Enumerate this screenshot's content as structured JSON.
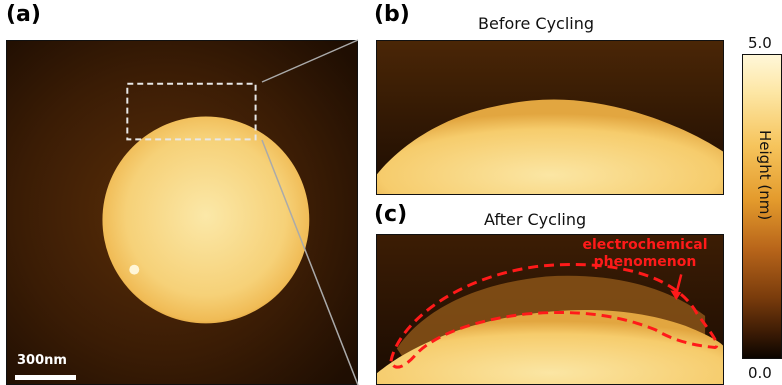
{
  "panels": {
    "a": {
      "label": "(a)",
      "scale_bar": "300nm"
    },
    "b": {
      "label": "(b)",
      "title": "Before Cycling"
    },
    "c": {
      "label": "(c)",
      "title": "After Cycling",
      "annotation_line1": "electrochemical",
      "annotation_line2": "phenomenon"
    }
  },
  "colorbar": {
    "max_label": "5.0",
    "min_label": "0.0",
    "axis_label": "Height (nm)"
  },
  "colors": {
    "annotation": "#ff1a1a",
    "background_dark": "#1a0c02",
    "particle_light": "#fbe29a"
  }
}
